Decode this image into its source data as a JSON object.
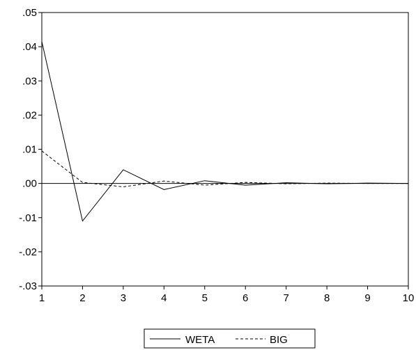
{
  "chart_data": {
    "type": "line",
    "title": "",
    "xlabel": "",
    "ylabel": "",
    "x": [
      1,
      2,
      3,
      4,
      5,
      6,
      7,
      8,
      9,
      10
    ],
    "x_tick_labels": [
      "1",
      "2",
      "3",
      "4",
      "5",
      "6",
      "7",
      "8",
      "9",
      "10"
    ],
    "ylim": [
      -0.03,
      0.05
    ],
    "y_ticks": [
      0.05,
      0.04,
      0.03,
      0.02,
      0.01,
      0.0,
      -0.01,
      -0.02,
      -0.03
    ],
    "y_tick_labels": [
      ".05",
      ".04",
      ".03",
      ".02",
      ".01",
      ".00",
      "-.01",
      "-.02",
      "-.03"
    ],
    "zero_line": true,
    "grid": false,
    "legend_placement": "bottom-center",
    "series": [
      {
        "name": "WETA",
        "style": "solid",
        "color": "#000000",
        "values": [
          0.0415,
          -0.011,
          0.004,
          -0.0018,
          0.0008,
          -0.0005,
          0.0002,
          -0.0001,
          0.0001,
          0.0
        ]
      },
      {
        "name": "BIG",
        "style": "dashed",
        "color": "#000000",
        "values": [
          0.0095,
          0.0003,
          -0.001,
          0.0007,
          -0.0005,
          0.0003,
          -0.0001,
          0.0001,
          0.0,
          0.0
        ]
      }
    ]
  }
}
